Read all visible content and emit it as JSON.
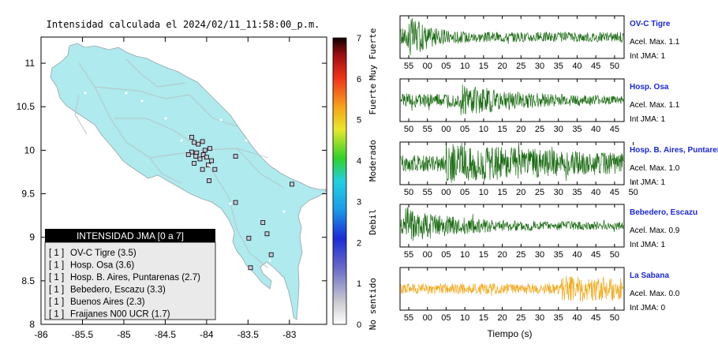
{
  "colors": {
    "land": "#aeeaee",
    "trace": "#1a6b12",
    "trace_alt": "#f2a91c",
    "station_name": "#1a27d6",
    "legend_header_bg": "#000000",
    "legend_bg": "#eaeaea"
  },
  "chart_data": [
    {
      "type": "map",
      "title": "Intensidad calculada el 2024/02/11_11:58:00_p.m.",
      "xlim": [
        -86,
        -82.55
      ],
      "ylim": [
        8,
        11.3
      ],
      "x_ticks": [
        "-86",
        "-85.5",
        "-85",
        "-84.5",
        "-84",
        "-83.5",
        "-83"
      ],
      "x_tick_values": [
        -86,
        -85.5,
        -85,
        -84.5,
        -84,
        -83.5,
        -83
      ],
      "y_ticks": [
        "11",
        "10.5",
        "10",
        "9.5",
        "9",
        "8.5",
        "8"
      ],
      "y_tick_values": [
        11,
        10.5,
        10,
        9.5,
        9,
        8.5,
        8
      ],
      "colorbar": {
        "ticks": [
          "0",
          "1",
          "2",
          "3",
          "4",
          "5",
          "6",
          "7"
        ],
        "range": [
          0,
          7
        ],
        "labels": [
          "No sentido",
          "Debil",
          "Moderado",
          "Fuerte",
          "Muy Fuerte"
        ],
        "label_values": [
          0.5,
          2.5,
          4,
          5.5,
          6.6
        ]
      },
      "legend": {
        "header": "INTENSIDAD JMA [0 a 7]",
        "placement": "bottom-left",
        "rows": [
          {
            "intensity": "[ 1 ]",
            "station": "OV-C Tigre (3.5)"
          },
          {
            "intensity": "[ 1 ]",
            "station": "Hosp. Osa (3.6)"
          },
          {
            "intensity": "[ 1 ]",
            "station": "Hosp. B. Aires, Puntarenas (2.7)"
          },
          {
            "intensity": "[ 1 ]",
            "station": "Bebedero, Escazu (3.3)"
          },
          {
            "intensity": "[ 1 ]",
            "station": "Buenos Aires (2.3)"
          },
          {
            "intensity": "[ 1 ]",
            "station": "Fraijanes N00 UCR (1.7)"
          }
        ]
      },
      "stations": [
        {
          "lon": -84.18,
          "lat": 10.15
        },
        {
          "lon": -84.15,
          "lat": 10.09
        },
        {
          "lon": -84.1,
          "lat": 10.07
        },
        {
          "lon": -84.05,
          "lat": 10.1
        },
        {
          "lon": -84.02,
          "lat": 10.0
        },
        {
          "lon": -83.96,
          "lat": 10.02
        },
        {
          "lon": -84.18,
          "lat": 9.98
        },
        {
          "lon": -84.12,
          "lat": 9.97
        },
        {
          "lon": -84.22,
          "lat": 9.95
        },
        {
          "lon": -84.13,
          "lat": 9.93
        },
        {
          "lon": -84.04,
          "lat": 9.95
        },
        {
          "lon": -84.0,
          "lat": 9.92
        },
        {
          "lon": -84.08,
          "lat": 9.9
        },
        {
          "lon": -83.94,
          "lat": 9.88
        },
        {
          "lon": -84.15,
          "lat": 9.85
        },
        {
          "lon": -83.98,
          "lat": 9.83
        },
        {
          "lon": -84.05,
          "lat": 9.78
        },
        {
          "lon": -83.9,
          "lat": 9.78
        },
        {
          "lon": -83.65,
          "lat": 9.93
        },
        {
          "lon": -83.97,
          "lat": 9.65
        },
        {
          "lon": -83.65,
          "lat": 9.4
        },
        {
          "lon": -83.32,
          "lat": 9.17
        },
        {
          "lon": -83.27,
          "lat": 9.04
        },
        {
          "lon": -83.49,
          "lat": 8.99
        },
        {
          "lon": -83.22,
          "lat": 8.8
        },
        {
          "lon": -83.47,
          "lat": 8.65
        },
        {
          "lon": -82.97,
          "lat": 9.61
        }
      ]
    },
    {
      "type": "line",
      "xlabel": "Tiempo (s)",
      "panels": [
        {
          "name": "OV-C Tigre",
          "acel": "Acel. Max. 1.1",
          "jma": "Int JMA: 1",
          "ticks": [
            "55",
            "00",
            "05",
            "10",
            "15",
            "20",
            "25",
            "30",
            "35",
            "40",
            "45",
            "50"
          ],
          "burst": 0.03,
          "amp": 1.0,
          "decay": 4.0,
          "color": "trace"
        },
        {
          "name": "Hosp. Osa",
          "acel": "Acel. Max. 1.1",
          "jma": "Int JMA: 1",
          "ticks": [
            "50",
            "55",
            "00",
            "05",
            "10",
            "15",
            "20",
            "25",
            "30",
            "35",
            "40",
            "45"
          ],
          "burst": 0.27,
          "amp": 0.7,
          "decay": 1.2,
          "color": "trace"
        },
        {
          "name": "Hosp. B. Aires, Puntarenas",
          "acel": "Acel. Max. 1.0",
          "jma": "Int JMA: 1",
          "ticks": [
            "50",
            "55",
            "00",
            "05",
            "10",
            "15",
            "20",
            "25",
            "30",
            "35",
            "40",
            "45",
            "50"
          ],
          "burst": 0.2,
          "amp": 0.85,
          "decay": 0.4,
          "color": "trace"
        },
        {
          "name": "Bebedero, Escazu",
          "acel": "Acel. Max. 0.9",
          "jma": "Int JMA: 1",
          "ticks": [
            "55",
            "00",
            "05",
            "10",
            "15",
            "20",
            "25",
            "30",
            "35",
            "40",
            "45",
            "50"
          ],
          "burst": 0.02,
          "amp": 0.8,
          "decay": 1.6,
          "color": "trace"
        },
        {
          "name": "La Sabana",
          "acel": "Acel. Max. 0.0",
          "jma": "Int JMA: 0",
          "ticks": [
            "55",
            "00",
            "05",
            "10",
            "15",
            "20",
            "25",
            "30",
            "35",
            "40",
            "45",
            "50"
          ],
          "burst": 0.72,
          "amp": 0.55,
          "decay": 0.2,
          "color": "trace_alt"
        }
      ]
    }
  ]
}
